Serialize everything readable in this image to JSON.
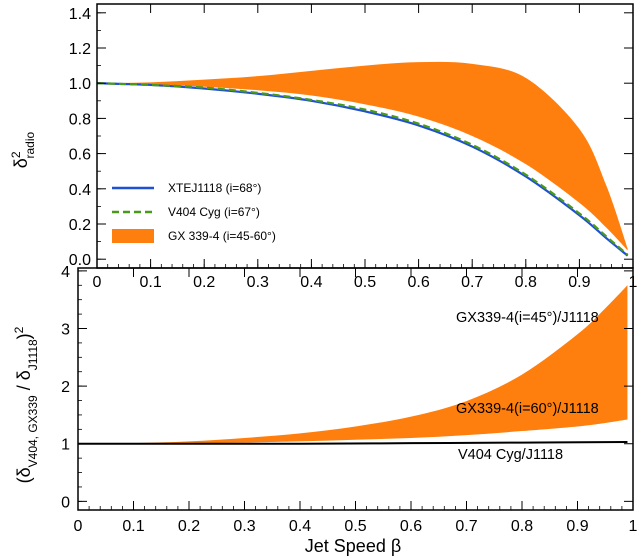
{
  "chart_data": [
    {
      "type": "area",
      "panel": "top",
      "ylabel": "δ²radio",
      "xlabel": "",
      "xlim": [
        0,
        1
      ],
      "ylim": [
        -0.05,
        1.45
      ],
      "xticks": [
        "0",
        "0.1",
        "0.2",
        "0.3",
        "0.4",
        "0.5",
        "0.6",
        "0.7",
        "0.8",
        "0.9",
        "1"
      ],
      "yticks": [
        "0.0",
        "0.2",
        "0.4",
        "0.6",
        "0.8",
        "1.0",
        "1.2",
        "1.4"
      ],
      "legend_position": "lower-left",
      "series": [
        {
          "name": "XTEJ1118 (i=68°)",
          "style": "solid",
          "color": "#1f4fd6",
          "x": [
            0,
            0.1,
            0.2,
            0.3,
            0.4,
            0.5,
            0.6,
            0.7,
            0.8,
            0.9,
            0.95,
            0.99
          ],
          "y": [
            1.0,
            0.99,
            0.97,
            0.94,
            0.9,
            0.84,
            0.76,
            0.64,
            0.47,
            0.25,
            0.12,
            0.02
          ]
        },
        {
          "name": "V404 Cyg (i=67°)",
          "style": "dashed",
          "color": "#4a9a1a",
          "x": [
            0,
            0.1,
            0.2,
            0.3,
            0.4,
            0.5,
            0.6,
            0.7,
            0.8,
            0.9,
            0.95,
            0.99
          ],
          "y": [
            1.0,
            0.99,
            0.975,
            0.945,
            0.905,
            0.85,
            0.77,
            0.65,
            0.48,
            0.26,
            0.13,
            0.025
          ]
        },
        {
          "name": "GX 339-4 (i=45-60°)",
          "style": "band",
          "color": "#ff7f0e",
          "x": [
            0,
            0.1,
            0.2,
            0.3,
            0.4,
            0.5,
            0.6,
            0.7,
            0.8,
            0.9,
            0.95,
            0.99
          ],
          "y_upper": [
            1.0,
            1.005,
            1.02,
            1.04,
            1.07,
            1.1,
            1.12,
            1.11,
            1.03,
            0.74,
            0.42,
            0.06
          ],
          "y_lower": [
            1.0,
            0.995,
            0.98,
            0.96,
            0.93,
            0.88,
            0.81,
            0.7,
            0.54,
            0.32,
            0.18,
            0.05
          ]
        }
      ]
    },
    {
      "type": "area",
      "panel": "bottom",
      "ylabel": "(δV404, GX339 / δJ1118)²",
      "xlabel": "Jet Speed β",
      "xlim": [
        0,
        1
      ],
      "ylim": [
        -0.15,
        4.05
      ],
      "xticks": [
        "0",
        "0.1",
        "0.2",
        "0.3",
        "0.4",
        "0.5",
        "0.6",
        "0.7",
        "0.8",
        "0.9",
        "1"
      ],
      "yticks": [
        "0",
        "1",
        "2",
        "3",
        "4"
      ],
      "series": [
        {
          "name": "GX339-4(i=45°)/J1118",
          "style": "band-upper",
          "color": "#ff7f0e",
          "x": [
            0,
            0.1,
            0.2,
            0.3,
            0.4,
            0.5,
            0.6,
            0.7,
            0.8,
            0.9,
            0.95,
            0.99
          ],
          "y": [
            1.0,
            1.01,
            1.04,
            1.1,
            1.18,
            1.3,
            1.47,
            1.74,
            2.2,
            2.9,
            3.35,
            3.75
          ]
        },
        {
          "name": "GX339-4(i=60°)/J1118",
          "style": "band-lower",
          "color": "#ff7f0e",
          "x": [
            0,
            0.1,
            0.2,
            0.3,
            0.4,
            0.5,
            0.6,
            0.7,
            0.8,
            0.9,
            0.95,
            0.99
          ],
          "y": [
            1.0,
            1.0,
            1.01,
            1.02,
            1.04,
            1.07,
            1.1,
            1.15,
            1.22,
            1.3,
            1.36,
            1.42
          ]
        },
        {
          "name": "V404 Cyg/J1118",
          "style": "solid",
          "color": "#000000",
          "x": [
            0,
            0.2,
            0.4,
            0.6,
            0.8,
            0.99
          ],
          "y": [
            1.0,
            1.0,
            1.0,
            1.01,
            1.02,
            1.03
          ]
        }
      ],
      "annotations": [
        "GX339-4(i=45°)/J1118",
        "GX339-4(i=60°)/J1118",
        "V404 Cyg/J1118"
      ]
    }
  ]
}
